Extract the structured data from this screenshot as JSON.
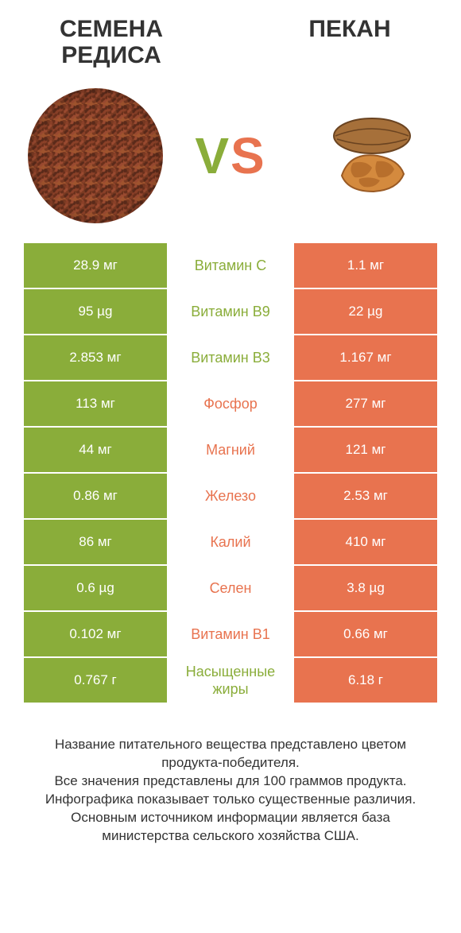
{
  "header": {
    "left_title": "СЕМЕНА РЕДИСА",
    "right_title": "ПЕКАН",
    "vs_v": "V",
    "vs_s": "S"
  },
  "colors": {
    "left": "#8aad3a",
    "right": "#e8734f",
    "background": "#ffffff",
    "text": "#333333",
    "footnote": "#333333"
  },
  "table": {
    "rows": [
      {
        "nutrient": "Витамин С",
        "left": "28.9 мг",
        "right": "1.1 мг",
        "winner": "left"
      },
      {
        "nutrient": "Витамин B9",
        "left": "95 µg",
        "right": "22 µg",
        "winner": "left"
      },
      {
        "nutrient": "Витамин B3",
        "left": "2.853 мг",
        "right": "1.167 мг",
        "winner": "left"
      },
      {
        "nutrient": "Фосфор",
        "left": "113 мг",
        "right": "277 мг",
        "winner": "right"
      },
      {
        "nutrient": "Магний",
        "left": "44 мг",
        "right": "121 мг",
        "winner": "right"
      },
      {
        "nutrient": "Железо",
        "left": "0.86 мг",
        "right": "2.53 мг",
        "winner": "right"
      },
      {
        "nutrient": "Калий",
        "left": "86 мг",
        "right": "410 мг",
        "winner": "right"
      },
      {
        "nutrient": "Селен",
        "left": "0.6 µg",
        "right": "3.8 µg",
        "winner": "right"
      },
      {
        "nutrient": "Витамин B1",
        "left": "0.102 мг",
        "right": "0.66 мг",
        "winner": "right"
      },
      {
        "nutrient": "Насыщенные жиры",
        "left": "0.767 г",
        "right": "6.18 г",
        "winner": "left"
      }
    ]
  },
  "footnote": {
    "line1": "Название питательного вещества представлено цветом продукта-победителя.",
    "line2": "Все значения представлены для 100 граммов продукта.",
    "line3": "Инфографика показывает только существенные различия.",
    "line4": "Основным источником информации является база министерства сельского хозяйства США."
  }
}
